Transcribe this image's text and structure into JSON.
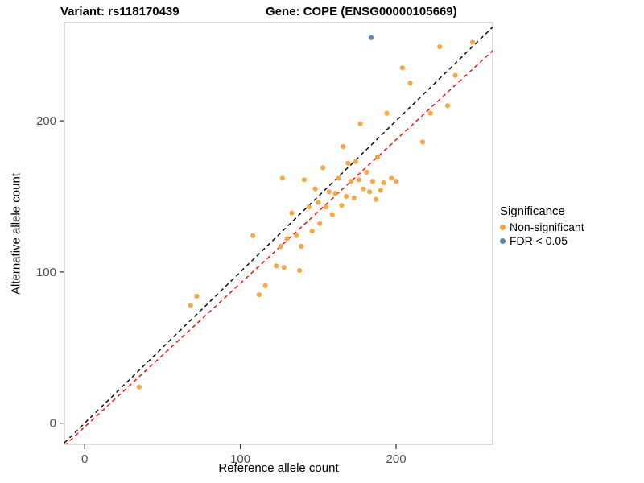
{
  "title_left": "Variant: rs118170439",
  "title_right": "Gene: COPE (ENSG00000105669)",
  "axes": {
    "xlabel": "Reference allele count",
    "ylabel": "Alternative allele count",
    "x_ticks": [
      0,
      100,
      200
    ],
    "y_ticks": [
      0,
      100,
      200
    ],
    "xlim": [
      -13,
      262
    ],
    "ylim": [
      -14,
      265
    ]
  },
  "legend": {
    "title": "Significance",
    "items": [
      {
        "label": "Non-significant",
        "color": "#F5A33C"
      },
      {
        "label": "FDR < 0.05",
        "color": "#5B87AE"
      }
    ]
  },
  "colors": {
    "panel_border": "#C9C9C9",
    "tick_label": "#4D4D4D",
    "identity_line": "#000000",
    "fit_line": "#FF0000"
  },
  "chart_data": {
    "type": "scatter",
    "title": "Variant: rs118170439  Gene: COPE (ENSG00000105669)",
    "xlabel": "Reference allele count",
    "ylabel": "Alternative allele count",
    "xlim": [
      -13,
      262
    ],
    "ylim": [
      -14,
      265
    ],
    "grid": false,
    "legend_position": "right",
    "series": [
      {
        "name": "Non-significant",
        "color": "#F5A33C",
        "points": [
          [
            35,
            24
          ],
          [
            68,
            78
          ],
          [
            72,
            84
          ],
          [
            108,
            124
          ],
          [
            112,
            85
          ],
          [
            116,
            91
          ],
          [
            123,
            104
          ],
          [
            126,
            117
          ],
          [
            127,
            162
          ],
          [
            128,
            103
          ],
          [
            130,
            122
          ],
          [
            133,
            139
          ],
          [
            136,
            124
          ],
          [
            138,
            101
          ],
          [
            139,
            117
          ],
          [
            141,
            161
          ],
          [
            144,
            143
          ],
          [
            146,
            127
          ],
          [
            148,
            155
          ],
          [
            150,
            146
          ],
          [
            151,
            132
          ],
          [
            153,
            169
          ],
          [
            155,
            143
          ],
          [
            157,
            153
          ],
          [
            159,
            138
          ],
          [
            161,
            152
          ],
          [
            163,
            162
          ],
          [
            165,
            144
          ],
          [
            166,
            183
          ],
          [
            168,
            150
          ],
          [
            169,
            172
          ],
          [
            171,
            160
          ],
          [
            173,
            149
          ],
          [
            174,
            173
          ],
          [
            176,
            161
          ],
          [
            177,
            198
          ],
          [
            179,
            155
          ],
          [
            181,
            166
          ],
          [
            183,
            153
          ],
          [
            185,
            160
          ],
          [
            187,
            148
          ],
          [
            188,
            176
          ],
          [
            190,
            154
          ],
          [
            192,
            159
          ],
          [
            194,
            205
          ],
          [
            197,
            162
          ],
          [
            200,
            160
          ],
          [
            204,
            235
          ],
          [
            209,
            225
          ],
          [
            217,
            186
          ],
          [
            222,
            205
          ],
          [
            228,
            249
          ],
          [
            233,
            210
          ],
          [
            238,
            230
          ],
          [
            249,
            252
          ]
        ]
      },
      {
        "name": "FDR < 0.05",
        "color": "#5B87AE",
        "points": [
          [
            184,
            255
          ]
        ]
      }
    ],
    "lines": [
      {
        "name": "identity",
        "style": "dashed",
        "color": "#000000",
        "slope": 1,
        "intercept": 0
      },
      {
        "name": "fit",
        "style": "dashed",
        "color": "#FF0000",
        "slope": 0.95,
        "intercept": -2.5
      }
    ]
  }
}
